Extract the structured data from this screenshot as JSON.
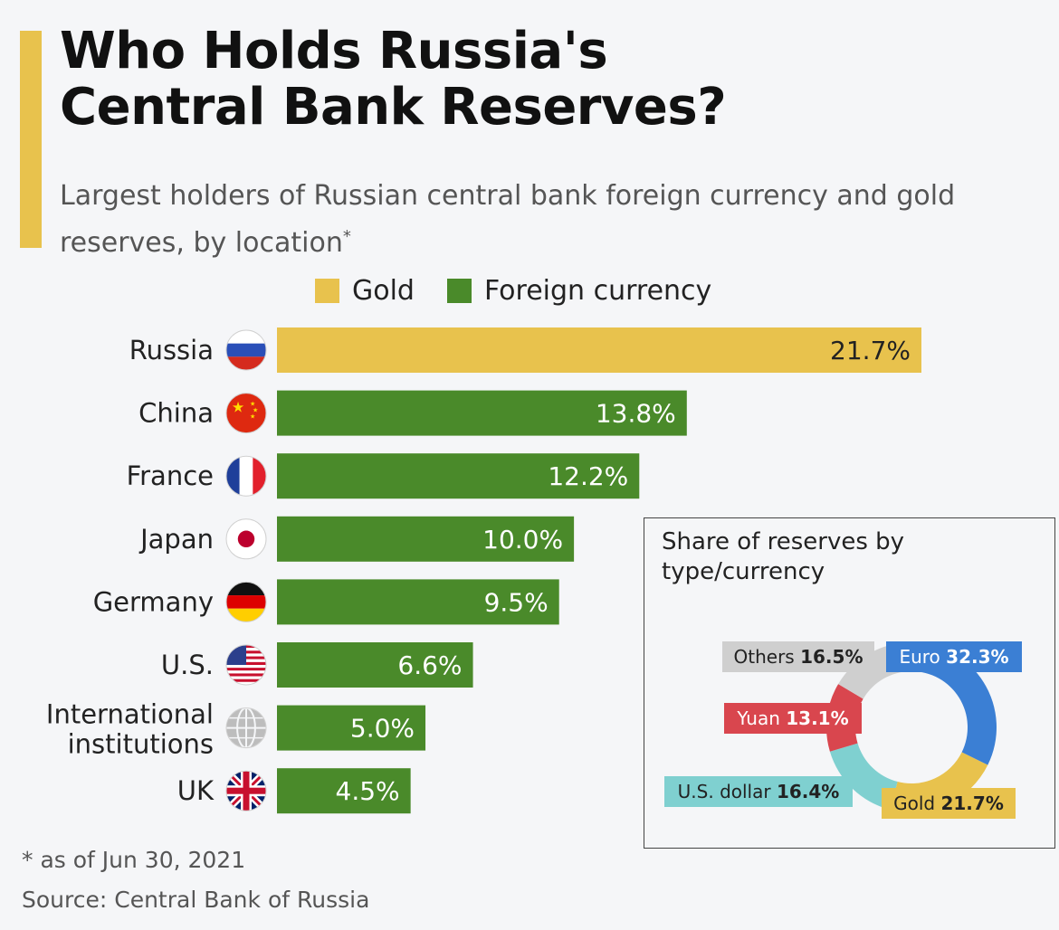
{
  "title_line1": "Who Holds Russia's",
  "title_line2": "Central Bank Reserves?",
  "subtitle": "Largest holders of Russian central bank foreign currency and gold reserves, by location",
  "subtitle_mark": "*",
  "footnote": "* as of Jun 30, 2021",
  "source": "Source: Central Bank of Russia",
  "colors": {
    "gold": "#e8c24d",
    "foreign": "#4a8a2a",
    "euro": "#3b7fd4",
    "dollar": "#7fd0d0",
    "yuan": "#d9464e",
    "others": "#cfcfcf",
    "gold_donut": "#e8c24d"
  },
  "chart_data": [
    {
      "type": "bar",
      "orientation": "horizontal",
      "legend": [
        {
          "name": "Gold",
          "color": "#e8c24d"
        },
        {
          "name": "Foreign currency",
          "color": "#4a8a2a"
        }
      ],
      "legend_placement": "top",
      "categories": [
        "Russia",
        "China",
        "France",
        "Japan",
        "Germany",
        "U.S.",
        "International institutions",
        "UK"
      ],
      "values": [
        21.7,
        13.8,
        12.2,
        10.0,
        9.5,
        6.6,
        5.0,
        4.5
      ],
      "value_labels": [
        "21.7%",
        "13.8%",
        "12.2%",
        "10.0%",
        "9.5%",
        "6.6%",
        "5.0%",
        "4.5%"
      ],
      "series_of_bar": [
        "Gold",
        "Foreign currency",
        "Foreign currency",
        "Foreign currency",
        "Foreign currency",
        "Foreign currency",
        "Foreign currency",
        "Foreign currency"
      ],
      "flag_icons": [
        "russia-flag-icon",
        "china-flag-icon",
        "france-flag-icon",
        "japan-flag-icon",
        "germany-flag-icon",
        "us-flag-icon",
        "globe-icon",
        "uk-flag-icon"
      ],
      "unit": "%",
      "grid": false
    },
    {
      "type": "pie",
      "variant": "donut",
      "title": "Share of reserves by type/currency",
      "slices": [
        {
          "name": "Euro",
          "value": 32.3,
          "label": "32.3%",
          "color": "#3b7fd4"
        },
        {
          "name": "Gold",
          "value": 21.7,
          "label": "21.7%",
          "color": "#e8c24d"
        },
        {
          "name": "U.S. dollar",
          "value": 16.4,
          "label": "16.4%",
          "color": "#7fd0d0"
        },
        {
          "name": "Yuan",
          "value": 13.1,
          "label": "13.1%",
          "color": "#d9464e"
        },
        {
          "name": "Others",
          "value": 16.5,
          "label": "16.5%",
          "color": "#cfcfcf"
        }
      ]
    }
  ]
}
